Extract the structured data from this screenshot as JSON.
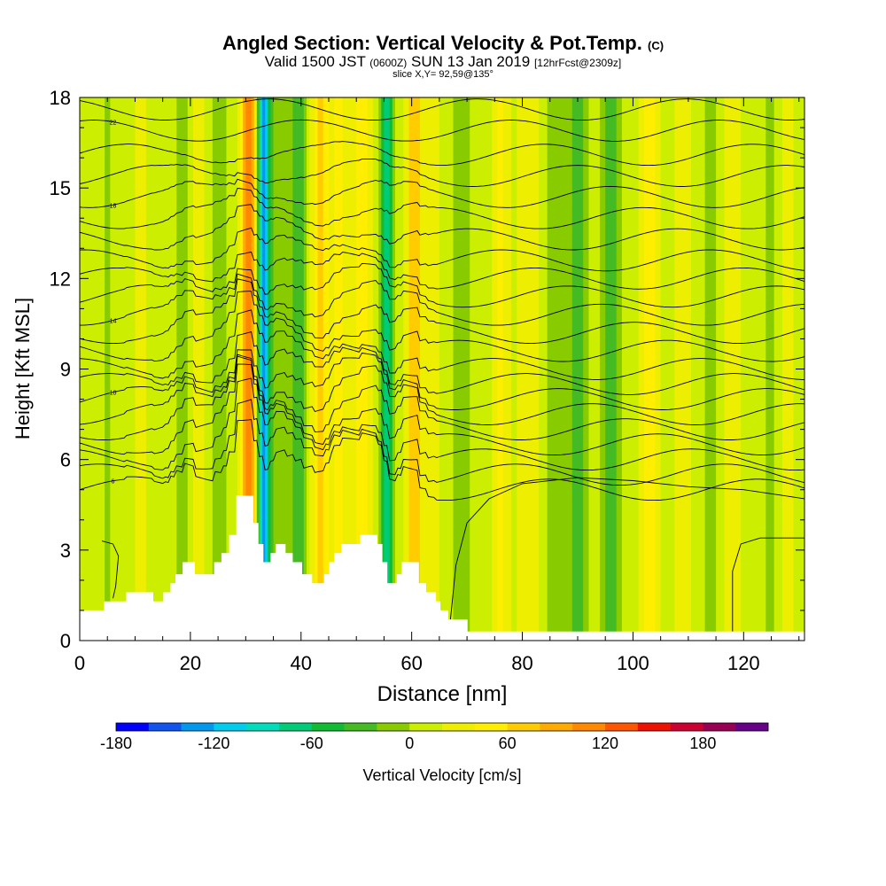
{
  "chart_data": {
    "type": "heatmap",
    "title": "Angled Section: Vertical Velocity & Pot.Temp.",
    "title_suffix": "(C)",
    "subtitle_a": "Valid 1500 JST",
    "subtitle_b": "(0600Z)",
    "subtitle_c": "SUN 13 Jan 2019",
    "subtitle_d": "[12hrFcst@2309z]",
    "slice_label": "slice X,Y= 92,59@135°",
    "xlabel": "Distance [nm]",
    "ylabel": "Height [Kft MSL]",
    "xlim": [
      0,
      131
    ],
    "ylim": [
      0,
      18
    ],
    "x_ticks": [
      0,
      20,
      40,
      60,
      80,
      100,
      120
    ],
    "y_ticks": [
      0,
      3,
      6,
      9,
      12,
      15,
      18
    ],
    "colorbar": {
      "label": "Vertical Velocity [cm/s]",
      "min": -180,
      "step": 20,
      "colors": [
        "#0000ff",
        "#1155ee",
        "#0099ee",
        "#00ccee",
        "#00ddbb",
        "#00cc77",
        "#11bb33",
        "#44bb22",
        "#88cc00",
        "#ccee00",
        "#eeee00",
        "#ffee00",
        "#ffcc00",
        "#ffaa00",
        "#ff8800",
        "#ff5500",
        "#ee1100",
        "#cc0033",
        "#990055",
        "#660088"
      ],
      "tick_values": [
        -180,
        -120,
        -60,
        0,
        60,
        120,
        180
      ],
      "tick_labels": [
        "-180",
        "-120",
        "-60",
        "0",
        "60",
        "120",
        "180"
      ]
    },
    "background_velocity": 10,
    "velocity_bands": [
      {
        "x": 5,
        "w": 0.9,
        "v": -20
      },
      {
        "x": 11,
        "w": 1.0,
        "v": 25
      },
      {
        "x": 18.5,
        "w": 1.2,
        "v": -25
      },
      {
        "x": 21.5,
        "w": 1.3,
        "v": 25
      },
      {
        "x": 25,
        "w": 1.2,
        "v": -30
      },
      {
        "x": 30.5,
        "w": 1.4,
        "v": 110
      },
      {
        "x": 33.3,
        "w": 1.1,
        "v": -140
      },
      {
        "x": 36,
        "w": 1.0,
        "v": -30
      },
      {
        "x": 39.5,
        "w": 1.5,
        "v": -45
      },
      {
        "x": 43.5,
        "w": 1.5,
        "v": 60
      },
      {
        "x": 47,
        "w": 1.3,
        "v": 40
      },
      {
        "x": 51,
        "w": 1.5,
        "v": 45
      },
      {
        "x": 55.5,
        "w": 1.2,
        "v": -75
      },
      {
        "x": 60.5,
        "w": 1.3,
        "v": 70
      },
      {
        "x": 64,
        "w": 1.2,
        "v": 30
      },
      {
        "x": 69,
        "w": 2.0,
        "v": -15
      },
      {
        "x": 76,
        "w": 1.5,
        "v": 35
      },
      {
        "x": 81,
        "w": 1.8,
        "v": 30
      },
      {
        "x": 86,
        "w": 1.5,
        "v": -25
      },
      {
        "x": 90,
        "w": 1.5,
        "v": -45
      },
      {
        "x": 96,
        "w": 1.5,
        "v": -40
      },
      {
        "x": 103,
        "w": 1.5,
        "v": 40
      },
      {
        "x": 109,
        "w": 1.5,
        "v": 30
      },
      {
        "x": 114,
        "w": 1.5,
        "v": -20
      },
      {
        "x": 118,
        "w": 1.5,
        "v": 30
      },
      {
        "x": 125,
        "w": 1.5,
        "v": -15
      },
      {
        "x": 128,
        "w": 1.5,
        "v": 20
      }
    ],
    "terrain": [
      [
        0,
        1.0
      ],
      [
        4.4,
        1.0
      ],
      [
        4.4,
        1.3
      ],
      [
        8.4,
        1.3
      ],
      [
        8.4,
        1.6
      ],
      [
        13.3,
        1.6
      ],
      [
        13.3,
        1.3
      ],
      [
        15.1,
        1.3
      ],
      [
        15.1,
        1.6
      ],
      [
        16.4,
        1.6
      ],
      [
        16.4,
        1.9
      ],
      [
        17.3,
        1.9
      ],
      [
        17.3,
        2.2
      ],
      [
        18.6,
        2.2
      ],
      [
        18.6,
        2.6
      ],
      [
        20.8,
        2.6
      ],
      [
        20.8,
        2.2
      ],
      [
        24.3,
        2.2
      ],
      [
        24.3,
        2.6
      ],
      [
        25.6,
        2.6
      ],
      [
        25.6,
        2.9
      ],
      [
        27.0,
        2.9
      ],
      [
        27.0,
        3.5
      ],
      [
        28.3,
        3.5
      ],
      [
        28.3,
        4.8
      ],
      [
        31.4,
        4.8
      ],
      [
        31.4,
        3.9
      ],
      [
        32.3,
        3.9
      ],
      [
        32.3,
        3.2
      ],
      [
        33.2,
        3.2
      ],
      [
        33.2,
        2.6
      ],
      [
        34.5,
        2.6
      ],
      [
        34.5,
        2.9
      ],
      [
        35.4,
        2.9
      ],
      [
        35.4,
        3.2
      ],
      [
        37.2,
        3.2
      ],
      [
        37.2,
        2.9
      ],
      [
        38.5,
        2.9
      ],
      [
        38.5,
        2.6
      ],
      [
        40.2,
        2.6
      ],
      [
        40.2,
        2.2
      ],
      [
        42.0,
        2.2
      ],
      [
        42.0,
        1.9
      ],
      [
        44.2,
        1.9
      ],
      [
        44.2,
        2.2
      ],
      [
        45.1,
        2.2
      ],
      [
        45.1,
        2.6
      ],
      [
        46.0,
        2.6
      ],
      [
        46.0,
        2.9
      ],
      [
        47.3,
        2.9
      ],
      [
        47.3,
        3.2
      ],
      [
        50.7,
        3.2
      ],
      [
        50.7,
        3.5
      ],
      [
        53.8,
        3.5
      ],
      [
        53.8,
        3.2
      ],
      [
        54.7,
        3.2
      ],
      [
        54.7,
        2.6
      ],
      [
        55.6,
        2.6
      ],
      [
        55.6,
        1.9
      ],
      [
        57.3,
        1.9
      ],
      [
        57.3,
        2.2
      ],
      [
        58.2,
        2.2
      ],
      [
        58.2,
        2.6
      ],
      [
        61.3,
        2.6
      ],
      [
        61.3,
        1.9
      ],
      [
        62.6,
        1.9
      ],
      [
        62.6,
        1.6
      ],
      [
        64.4,
        1.6
      ],
      [
        64.4,
        1.3
      ],
      [
        65.2,
        1.3
      ],
      [
        65.2,
        1.0
      ],
      [
        66.6,
        1.0
      ],
      [
        66.6,
        0.7
      ],
      [
        70.1,
        0.7
      ],
      [
        70.1,
        0.3
      ],
      [
        131,
        0.3
      ],
      [
        131,
        0
      ]
    ],
    "isentropes": [
      {
        "label": "6",
        "base": 5.0,
        "x0": 0,
        "x1": 131
      },
      {
        "label": "",
        "base": 5.5,
        "x0": 0,
        "x1": 131
      },
      {
        "label": "",
        "base": 6.0,
        "x0": 0,
        "x1": 131
      },
      {
        "label": "",
        "base": 6.5,
        "x0": 0,
        "x1": 131
      },
      {
        "label": "",
        "base": 7.0,
        "x0": 0,
        "x1": 131
      },
      {
        "label": "",
        "base": 7.5,
        "x0": 0,
        "x1": 131
      },
      {
        "label": "10",
        "base": 8.0,
        "x0": 0,
        "x1": 131
      },
      {
        "label": "",
        "base": 8.5,
        "x0": 0,
        "x1": 131
      },
      {
        "label": "",
        "base": 9.0,
        "x0": 0,
        "x1": 131
      },
      {
        "label": "",
        "base": 9.6,
        "x0": 0,
        "x1": 131
      },
      {
        "label": "",
        "base": 10.2,
        "x0": 0,
        "x1": 131
      },
      {
        "label": "14",
        "base": 10.8,
        "x0": 0,
        "x1": 131
      },
      {
        "label": "",
        "base": 11.4,
        "x0": 0,
        "x1": 131
      },
      {
        "label": "",
        "base": 12.0,
        "x0": 0,
        "x1": 131
      },
      {
        "label": "",
        "base": 12.6,
        "x0": 0,
        "x1": 131
      },
      {
        "label": "",
        "base": 13.3,
        "x0": 0,
        "x1": 131
      },
      {
        "label": "",
        "base": 14.0,
        "x0": 0,
        "x1": 131
      },
      {
        "label": "18",
        "base": 14.7,
        "x0": 0,
        "x1": 131
      },
      {
        "label": "",
        "base": 15.4,
        "x0": 0,
        "x1": 131
      },
      {
        "label": "",
        "base": 16.1,
        "x0": 0,
        "x1": 131
      },
      {
        "label": "22",
        "base": 16.9,
        "x0": 0,
        "x1": 131
      },
      {
        "label": "",
        "base": 17.6,
        "x0": 0,
        "x1": 131
      }
    ],
    "low_contours": [
      {
        "points": [
          [
            4,
            3.3
          ],
          [
            6,
            3.2
          ],
          [
            7,
            2.8
          ],
          [
            6.5,
            1.8
          ],
          [
            6,
            1.4
          ]
        ]
      },
      {
        "points": [
          [
            67,
            0.7
          ],
          [
            68,
            2.5
          ],
          [
            70,
            3.9
          ],
          [
            74,
            4.7
          ],
          [
            80,
            5.2
          ],
          [
            90,
            5.4
          ],
          [
            100,
            5.3
          ],
          [
            110,
            5.1
          ],
          [
            120,
            5.0
          ],
          [
            131,
            4.7
          ]
        ]
      },
      {
        "points": [
          [
            118,
            0.3
          ],
          [
            118,
            2.3
          ],
          [
            119.5,
            3.2
          ],
          [
            123,
            3.4
          ],
          [
            131,
            3.4
          ]
        ]
      }
    ]
  }
}
